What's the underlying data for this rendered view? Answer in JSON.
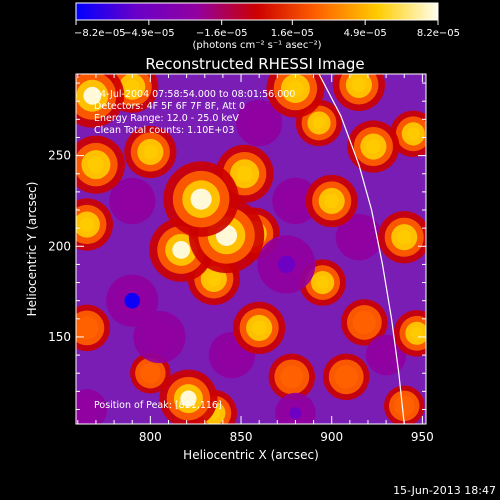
{
  "colorbar": {
    "ticks": [
      "−8.2e−05",
      "−4.9e−05",
      "−1.6e−05",
      "1.6e−05",
      "4.9e−05",
      "8.2e−05"
    ],
    "tick_values": [
      -8.2e-05,
      -4.9e-05,
      -1.6e-05,
      1.6e-05,
      4.9e-05,
      8.2e-05
    ],
    "range": [
      -8.2e-05,
      8.2e-05
    ],
    "units": "(photons cm⁻² s⁻¹ asec⁻²)",
    "colors": [
      "#0000ff",
      "#6a00c8",
      "#9100a0",
      "#cc0000",
      "#ff6200",
      "#ffcc00",
      "#ffffee"
    ]
  },
  "annotations": [
    "14-Jul-2004 07:58:54.000 to 08:01:56.000",
    "Detectors: 4F 5F 6F 7F 8F, Att 0",
    "Energy Range: 12.0 - 25.0 keV",
    "Clean     Total counts: 1.10E+03",
    "Position of Peak: [821,116]"
  ],
  "footer_date": "15-Jun-2013 18:47",
  "chart_data": {
    "type": "heatmap",
    "title": "Reconstructed RHESSI Image",
    "xlabel": "Heliocentric X (arcsec)",
    "ylabel": "Heliocentric Y (arcsec)",
    "xlim": [
      759,
      952
    ],
    "ylim": [
      102,
      295
    ],
    "xticks": [
      800,
      850,
      900,
      950
    ],
    "yticks": [
      150,
      200,
      250
    ],
    "xtick_labels": [
      "800",
      "850",
      "900",
      "950"
    ],
    "ytick_labels": [
      "150",
      "200",
      "250"
    ],
    "grid": false,
    "limb_line": [
      [
        893,
        295
      ],
      [
        905,
        272
      ],
      [
        915,
        245
      ],
      [
        922,
        220
      ],
      [
        928,
        190
      ],
      [
        933,
        160
      ],
      [
        937,
        130
      ],
      [
        940,
        102
      ]
    ],
    "peak_position": [
      821,
      116
    ],
    "blobs": [
      {
        "x": 828,
        "y": 226,
        "r": 13,
        "v": 1.0
      },
      {
        "x": 842,
        "y": 206,
        "r": 13,
        "v": 0.95
      },
      {
        "x": 817,
        "y": 198,
        "r": 11,
        "v": 0.9
      },
      {
        "x": 852,
        "y": 240,
        "r": 10,
        "v": 0.7
      },
      {
        "x": 835,
        "y": 182,
        "r": 9,
        "v": 0.6
      },
      {
        "x": 857,
        "y": 207,
        "r": 9,
        "v": 0.6
      },
      {
        "x": 821,
        "y": 116,
        "r": 10,
        "v": 1.0
      },
      {
        "x": 835,
        "y": 108,
        "r": 8,
        "v": 0.8
      },
      {
        "x": 768,
        "y": 283,
        "r": 11,
        "v": 0.85
      },
      {
        "x": 790,
        "y": 288,
        "r": 9,
        "v": 0.75
      },
      {
        "x": 770,
        "y": 245,
        "r": 10,
        "v": 0.65
      },
      {
        "x": 765,
        "y": 212,
        "r": 9,
        "v": 0.5
      },
      {
        "x": 800,
        "y": 252,
        "r": 9,
        "v": 0.55
      },
      {
        "x": 880,
        "y": 287,
        "r": 10,
        "v": 0.8
      },
      {
        "x": 915,
        "y": 289,
        "r": 9,
        "v": 0.75
      },
      {
        "x": 893,
        "y": 268,
        "r": 8,
        "v": 0.55
      },
      {
        "x": 923,
        "y": 255,
        "r": 9,
        "v": 0.6
      },
      {
        "x": 945,
        "y": 262,
        "r": 8,
        "v": 0.5
      },
      {
        "x": 900,
        "y": 225,
        "r": 9,
        "v": 0.55
      },
      {
        "x": 940,
        "y": 205,
        "r": 9,
        "v": 0.55
      },
      {
        "x": 895,
        "y": 180,
        "r": 8,
        "v": 0.5
      },
      {
        "x": 918,
        "y": 158,
        "r": 8,
        "v": 0.45
      },
      {
        "x": 947,
        "y": 152,
        "r": 8,
        "v": 0.5
      },
      {
        "x": 860,
        "y": 155,
        "r": 9,
        "v": 0.55
      },
      {
        "x": 878,
        "y": 128,
        "r": 8,
        "v": 0.45
      },
      {
        "x": 908,
        "y": 128,
        "r": 8,
        "v": 0.45
      },
      {
        "x": 765,
        "y": 155,
        "r": 8,
        "v": 0.45
      },
      {
        "x": 800,
        "y": 130,
        "r": 7,
        "v": 0.35
      },
      {
        "x": 940,
        "y": 112,
        "r": 7,
        "v": 0.4
      },
      {
        "x": 790,
        "y": 170,
        "r": 9,
        "v": -1.0
      },
      {
        "x": 805,
        "y": 150,
        "r": 9,
        "v": -0.5
      },
      {
        "x": 875,
        "y": 190,
        "r": 10,
        "v": -0.6
      },
      {
        "x": 880,
        "y": 225,
        "r": 8,
        "v": -0.45
      },
      {
        "x": 880,
        "y": 108,
        "r": 7,
        "v": -0.8
      },
      {
        "x": 845,
        "y": 140,
        "r": 8,
        "v": -0.45
      },
      {
        "x": 915,
        "y": 205,
        "r": 8,
        "v": -0.5
      },
      {
        "x": 860,
        "y": 268,
        "r": 8,
        "v": -0.5
      },
      {
        "x": 790,
        "y": 225,
        "r": 8,
        "v": -0.5
      },
      {
        "x": 930,
        "y": 140,
        "r": 7,
        "v": -0.45
      },
      {
        "x": 765,
        "y": 110,
        "r": 7,
        "v": -0.45
      }
    ]
  }
}
